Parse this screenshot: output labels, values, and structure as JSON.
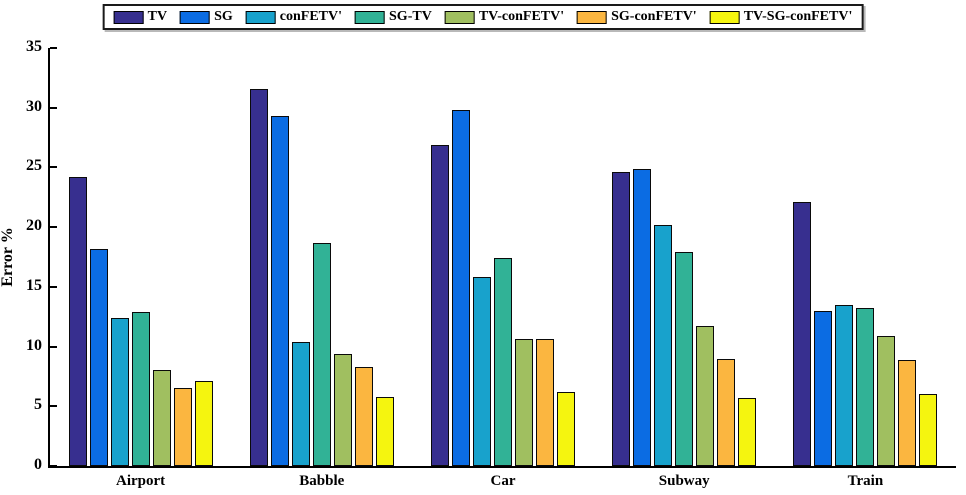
{
  "chart_data": {
    "type": "bar",
    "title": "",
    "xlabel": "",
    "ylabel": "Error %",
    "ylim": [
      0,
      35
    ],
    "yticks": [
      0,
      5,
      10,
      15,
      20,
      25,
      30,
      35
    ],
    "grid": false,
    "legend_position": "top",
    "categories": [
      "Airport",
      "Babble",
      "Car",
      "Subway",
      "Train"
    ],
    "series": [
      {
        "name": "TV",
        "color": "#372F8F",
        "values": [
          24.2,
          31.6,
          26.9,
          24.6,
          22.1
        ]
      },
      {
        "name": "SG",
        "color": "#0B6CE3",
        "values": [
          18.2,
          29.3,
          29.8,
          24.9,
          13.0
        ]
      },
      {
        "name": "conFETV'",
        "color": "#18A2CC",
        "values": [
          12.4,
          10.4,
          15.8,
          20.2,
          13.5
        ]
      },
      {
        "name": "SG-TV",
        "color": "#31B296",
        "values": [
          12.9,
          18.7,
          17.4,
          17.9,
          13.2
        ]
      },
      {
        "name": "TV-conFETV'",
        "color": "#A0BF60",
        "values": [
          8.0,
          9.4,
          10.6,
          11.7,
          10.9
        ]
      },
      {
        "name": "SG-conFETV'",
        "color": "#FBB640",
        "values": [
          6.5,
          8.3,
          10.6,
          9.0,
          8.9
        ]
      },
      {
        "name": "TV-SG-conFETV'",
        "color": "#F5F50F",
        "values": [
          7.1,
          5.8,
          6.2,
          5.7,
          6.0
        ]
      }
    ]
  }
}
